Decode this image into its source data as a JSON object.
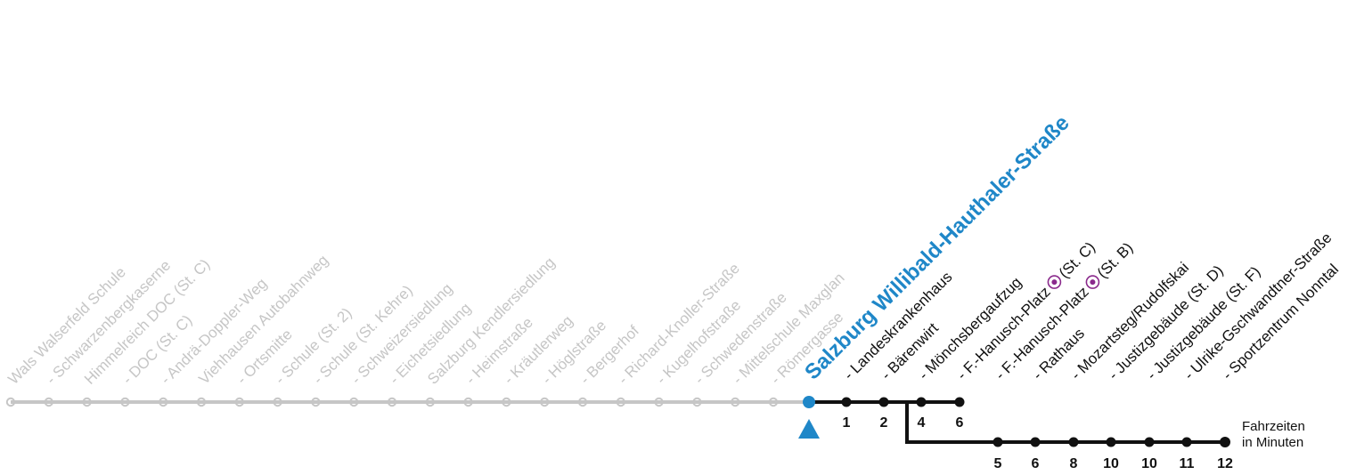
{
  "colors": {
    "past": "#c6c6c6",
    "route": "#111111",
    "current": "#1f87c8",
    "interchange": "#8a2a8c"
  },
  "current_stop": "Salzburg Willibald-Hauthaler-Straße",
  "past_stops": [
    "Wals Walserfeld Schule",
    "- Schwarzenbergkaserne",
    "Himmelreich DOC (St. C)",
    "- DOC (St. C)",
    "- Andrä-Doppler-Weg",
    "Viehhausen Autobahnweg",
    "- Ortsmitte",
    "- Schule (St. 2)",
    "- Schule (St. Kehre)",
    "- Schweizersiedlung",
    "- Eichetsiedlung",
    "Salzburg Kendlersiedlung",
    "- Heimstraße",
    "- Kräutlerweg",
    "- Höglstraße",
    "- Bergerhof",
    "- Richard-Knoller-Straße",
    "- Kugelhofstraße",
    "- Schwedenstraße",
    "- Mittelschule Maxglan",
    "- Römergasse"
  ],
  "next_stops": [
    {
      "name": "- Landeskrankenhaus",
      "minutes": "1",
      "branch": "main",
      "interchange": false
    },
    {
      "name": "- Bärenwirt",
      "minutes": "2",
      "branch": "main",
      "interchange": false
    },
    {
      "name": "- Mönchsbergaufzug",
      "minutes": "4",
      "branch": "main",
      "interchange": false
    },
    {
      "name": "- F.-Hanusch-Platz",
      "suffix": "(St. C)",
      "minutes": "6",
      "branch": "main",
      "interchange": true
    },
    {
      "name": "- F.-Hanusch-Platz",
      "suffix": "(St. B)",
      "minutes": "5",
      "branch": "lower",
      "interchange": true
    },
    {
      "name": "- Rathaus",
      "minutes": "6",
      "branch": "lower",
      "interchange": false
    },
    {
      "name": "- Mozartsteg/Rudolfskai",
      "minutes": "8",
      "branch": "lower",
      "interchange": false
    },
    {
      "name": "- Justizgebäude (St. D)",
      "minutes": "10",
      "branch": "lower",
      "interchange": false
    },
    {
      "name": "- Justizgebäude (St. F)",
      "minutes": "10",
      "branch": "lower",
      "interchange": false
    },
    {
      "name": "- Ulrike-Gschwandtner-Straße",
      "minutes": "11",
      "branch": "lower",
      "interchange": false
    },
    {
      "name": "- Sportzentrum Nonntal",
      "minutes": "12",
      "branch": "lower",
      "interchange": false
    }
  ],
  "legend": {
    "line1": "Fahrzeiten",
    "line2": "in Minuten"
  }
}
